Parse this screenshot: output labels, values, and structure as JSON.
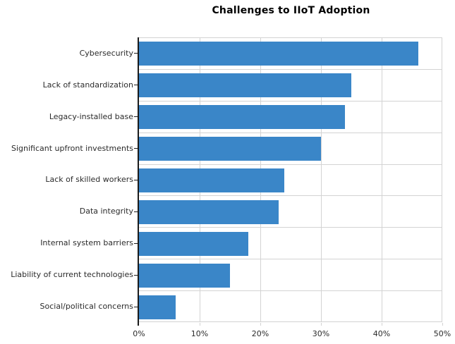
{
  "chart_data": {
    "type": "bar",
    "orientation": "horizontal",
    "title": "Challenges to IIoT Adoption",
    "xlabel": "",
    "ylabel": "",
    "categories": [
      "Cybersecurity",
      "Lack of standardization",
      "Legacy-installed base",
      "Significant upfront investments",
      "Lack of skilled workers",
      "Data integrity",
      "Internal system barriers",
      "Liability of current technologies",
      "Social/political concerns"
    ],
    "values": [
      46,
      35,
      34,
      30,
      24,
      23,
      18,
      15,
      6
    ],
    "unit": "%",
    "xlim": [
      0,
      50
    ],
    "x_tick_values": [
      0,
      10,
      20,
      30,
      40,
      50
    ],
    "x_tick_labels": [
      "0%",
      "10%",
      "20%",
      "30%",
      "40%",
      "50%"
    ],
    "grid": true,
    "legend": "none",
    "colors": {
      "bar": "#3a86c8",
      "grid": "#d3d3d3",
      "axis": "#1a1a1a",
      "text": "#2b2b2b",
      "title": "#000000",
      "background": "#ffffff"
    }
  }
}
